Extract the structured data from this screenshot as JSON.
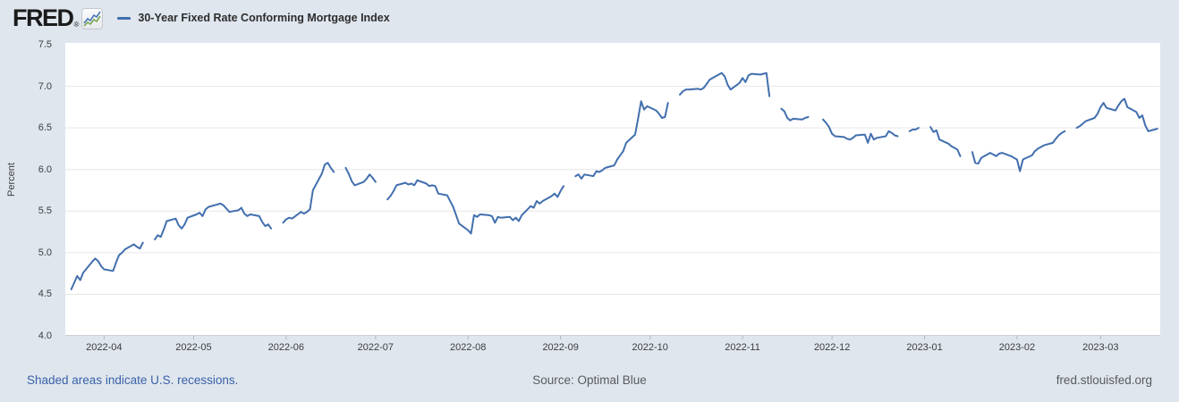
{
  "header": {
    "logo_text": "FRED",
    "logo_reg": "®",
    "series_label": "30-Year Fixed Rate Conforming Mortgage Index"
  },
  "footer": {
    "recession_note": "Shaded areas indicate U.S. recessions.",
    "source": "Source: Optimal Blue",
    "site": "fred.stlouisfed.org"
  },
  "colors": {
    "background": "#dfe6ee",
    "plot_background": "#ffffff",
    "line": "#426fae",
    "gridline": "#e6e6e6",
    "tick": "#b0b8c2",
    "axis_text": "#3d3d3d",
    "link": "#3a62a8",
    "muted_text": "#595b5d"
  },
  "chart_data": {
    "type": "line",
    "title": "30-Year Fixed Rate Conforming Mortgage Index",
    "ylabel": "Percent",
    "xlabel": "",
    "ylim": [
      4.0,
      7.5
    ],
    "x_range": [
      "2022-03-19",
      "2023-03-21"
    ],
    "grid": "horizontal",
    "legend_position": "top-left",
    "y_ticks": [
      {
        "label": "7.5",
        "value": 7.5
      },
      {
        "label": "7.0",
        "value": 7.0
      },
      {
        "label": "6.5",
        "value": 6.5
      },
      {
        "label": "6.0",
        "value": 6.0
      },
      {
        "label": "5.5",
        "value": 5.5
      },
      {
        "label": "5.0",
        "value": 5.0
      },
      {
        "label": "4.5",
        "value": 4.5
      },
      {
        "label": "4.0",
        "value": 4.0
      }
    ],
    "x_ticks": [
      {
        "label": "2022-04",
        "date": "2022-04-01"
      },
      {
        "label": "2022-05",
        "date": "2022-05-01"
      },
      {
        "label": "2022-06",
        "date": "2022-06-01"
      },
      {
        "label": "2022-07",
        "date": "2022-07-01"
      },
      {
        "label": "2022-08",
        "date": "2022-08-01"
      },
      {
        "label": "2022-09",
        "date": "2022-09-01"
      },
      {
        "label": "2022-10",
        "date": "2022-10-01"
      },
      {
        "label": "2022-11",
        "date": "2022-11-01"
      },
      {
        "label": "2022-12",
        "date": "2022-12-01"
      },
      {
        "label": "2023-01",
        "date": "2023-01-01"
      },
      {
        "label": "2023-02",
        "date": "2023-02-01"
      },
      {
        "label": "2023-03",
        "date": "2023-03-01"
      }
    ],
    "series": [
      {
        "name": "30-Year Fixed Rate Conforming Mortgage Index",
        "units": "Percent",
        "observations": [
          [
            "2022-03-21",
            4.56
          ],
          [
            "2022-03-22",
            4.64
          ],
          [
            "2022-03-23",
            4.72
          ],
          [
            "2022-03-24",
            4.67
          ],
          [
            "2022-03-25",
            4.76
          ],
          [
            "2022-03-28",
            4.89
          ],
          [
            "2022-03-29",
            4.93
          ],
          [
            "2022-03-30",
            4.9
          ],
          [
            "2022-03-31",
            4.84
          ],
          [
            "2022-04-01",
            4.8
          ],
          [
            "2022-04-04",
            4.78
          ],
          [
            "2022-04-05",
            4.88
          ],
          [
            "2022-04-06",
            4.97
          ],
          [
            "2022-04-07",
            5.0
          ],
          [
            "2022-04-08",
            5.04
          ],
          [
            "2022-04-11",
            5.1
          ],
          [
            "2022-04-12",
            5.07
          ],
          [
            "2022-04-13",
            5.05
          ],
          [
            "2022-04-14",
            5.12
          ],
          [
            "2022-04-18",
            5.16
          ],
          [
            "2022-04-19",
            5.21
          ],
          [
            "2022-04-20",
            5.19
          ],
          [
            "2022-04-21",
            5.28
          ],
          [
            "2022-04-22",
            5.38
          ],
          [
            "2022-04-25",
            5.41
          ],
          [
            "2022-04-26",
            5.33
          ],
          [
            "2022-04-27",
            5.29
          ],
          [
            "2022-04-28",
            5.34
          ],
          [
            "2022-04-29",
            5.42
          ],
          [
            "2022-05-02",
            5.46
          ],
          [
            "2022-05-03",
            5.48
          ],
          [
            "2022-05-04",
            5.44
          ],
          [
            "2022-05-05",
            5.52
          ],
          [
            "2022-05-06",
            5.55
          ],
          [
            "2022-05-09",
            5.58
          ],
          [
            "2022-05-10",
            5.59
          ],
          [
            "2022-05-11",
            5.57
          ],
          [
            "2022-05-12",
            5.53
          ],
          [
            "2022-05-13",
            5.49
          ],
          [
            "2022-05-16",
            5.51
          ],
          [
            "2022-05-17",
            5.54
          ],
          [
            "2022-05-18",
            5.47
          ],
          [
            "2022-05-19",
            5.44
          ],
          [
            "2022-05-20",
            5.46
          ],
          [
            "2022-05-23",
            5.44
          ],
          [
            "2022-05-24",
            5.37
          ],
          [
            "2022-05-25",
            5.32
          ],
          [
            "2022-05-26",
            5.34
          ],
          [
            "2022-05-27",
            5.29
          ],
          [
            "2022-05-31",
            5.36
          ],
          [
            "2022-06-01",
            5.4
          ],
          [
            "2022-06-02",
            5.42
          ],
          [
            "2022-06-03",
            5.41
          ],
          [
            "2022-06-06",
            5.49
          ],
          [
            "2022-06-07",
            5.47
          ],
          [
            "2022-06-08",
            5.49
          ],
          [
            "2022-06-09",
            5.52
          ],
          [
            "2022-06-10",
            5.75
          ],
          [
            "2022-06-13",
            5.95
          ],
          [
            "2022-06-14",
            6.06
          ],
          [
            "2022-06-15",
            6.08
          ],
          [
            "2022-06-16",
            6.02
          ],
          [
            "2022-06-17",
            5.97
          ],
          [
            "2022-06-21",
            6.02
          ],
          [
            "2022-06-22",
            5.95
          ],
          [
            "2022-06-23",
            5.86
          ],
          [
            "2022-06-24",
            5.81
          ],
          [
            "2022-06-27",
            5.85
          ],
          [
            "2022-06-28",
            5.89
          ],
          [
            "2022-06-29",
            5.94
          ],
          [
            "2022-06-30",
            5.9
          ],
          [
            "2022-07-01",
            5.85
          ],
          [
            "2022-07-05",
            5.64
          ],
          [
            "2022-07-06",
            5.68
          ],
          [
            "2022-07-07",
            5.74
          ],
          [
            "2022-07-08",
            5.81
          ],
          [
            "2022-07-11",
            5.84
          ],
          [
            "2022-07-12",
            5.82
          ],
          [
            "2022-07-13",
            5.83
          ],
          [
            "2022-07-14",
            5.81
          ],
          [
            "2022-07-15",
            5.87
          ],
          [
            "2022-07-18",
            5.83
          ],
          [
            "2022-07-19",
            5.8
          ],
          [
            "2022-07-20",
            5.81
          ],
          [
            "2022-07-21",
            5.8
          ],
          [
            "2022-07-22",
            5.71
          ],
          [
            "2022-07-25",
            5.69
          ],
          [
            "2022-07-26",
            5.62
          ],
          [
            "2022-07-27",
            5.55
          ],
          [
            "2022-07-28",
            5.45
          ],
          [
            "2022-07-29",
            5.35
          ],
          [
            "2022-08-01",
            5.27
          ],
          [
            "2022-08-02",
            5.23
          ],
          [
            "2022-08-03",
            5.45
          ],
          [
            "2022-08-04",
            5.43
          ],
          [
            "2022-08-05",
            5.46
          ],
          [
            "2022-08-08",
            5.45
          ],
          [
            "2022-08-09",
            5.44
          ],
          [
            "2022-08-10",
            5.36
          ],
          [
            "2022-08-11",
            5.43
          ],
          [
            "2022-08-12",
            5.42
          ],
          [
            "2022-08-15",
            5.43
          ],
          [
            "2022-08-16",
            5.39
          ],
          [
            "2022-08-17",
            5.42
          ],
          [
            "2022-08-18",
            5.38
          ],
          [
            "2022-08-19",
            5.45
          ],
          [
            "2022-08-22",
            5.56
          ],
          [
            "2022-08-23",
            5.54
          ],
          [
            "2022-08-24",
            5.62
          ],
          [
            "2022-08-25",
            5.59
          ],
          [
            "2022-08-26",
            5.62
          ],
          [
            "2022-08-29",
            5.68
          ],
          [
            "2022-08-30",
            5.71
          ],
          [
            "2022-08-31",
            5.67
          ],
          [
            "2022-09-01",
            5.74
          ],
          [
            "2022-09-02",
            5.8
          ],
          [
            "2022-09-06",
            5.92
          ],
          [
            "2022-09-07",
            5.94
          ],
          [
            "2022-09-08",
            5.89
          ],
          [
            "2022-09-09",
            5.94
          ],
          [
            "2022-09-12",
            5.92
          ],
          [
            "2022-09-13",
            5.98
          ],
          [
            "2022-09-14",
            5.97
          ],
          [
            "2022-09-15",
            5.99
          ],
          [
            "2022-09-16",
            6.02
          ],
          [
            "2022-09-19",
            6.05
          ],
          [
            "2022-09-20",
            6.12
          ],
          [
            "2022-09-21",
            6.17
          ],
          [
            "2022-09-22",
            6.22
          ],
          [
            "2022-09-23",
            6.32
          ],
          [
            "2022-09-26",
            6.42
          ],
          [
            "2022-09-27",
            6.61
          ],
          [
            "2022-09-28",
            6.82
          ],
          [
            "2022-09-29",
            6.72
          ],
          [
            "2022-09-30",
            6.76
          ],
          [
            "2022-10-03",
            6.71
          ],
          [
            "2022-10-04",
            6.67
          ],
          [
            "2022-10-05",
            6.62
          ],
          [
            "2022-10-06",
            6.63
          ],
          [
            "2022-10-07",
            6.8
          ],
          [
            "2022-10-11",
            6.9
          ],
          [
            "2022-10-12",
            6.94
          ],
          [
            "2022-10-13",
            6.96
          ],
          [
            "2022-10-14",
            6.96
          ],
          [
            "2022-10-17",
            6.97
          ],
          [
            "2022-10-18",
            6.96
          ],
          [
            "2022-10-19",
            6.98
          ],
          [
            "2022-10-20",
            7.03
          ],
          [
            "2022-10-21",
            7.08
          ],
          [
            "2022-10-24",
            7.14
          ],
          [
            "2022-10-25",
            7.16
          ],
          [
            "2022-10-26",
            7.12
          ],
          [
            "2022-10-27",
            7.02
          ],
          [
            "2022-10-28",
            6.96
          ],
          [
            "2022-10-31",
            7.04
          ],
          [
            "2022-11-01",
            7.1
          ],
          [
            "2022-11-02",
            7.05
          ],
          [
            "2022-11-03",
            7.13
          ],
          [
            "2022-11-04",
            7.15
          ],
          [
            "2022-11-07",
            7.14
          ],
          [
            "2022-11-08",
            7.15
          ],
          [
            "2022-11-09",
            7.16
          ],
          [
            "2022-11-10",
            6.88
          ],
          [
            "2022-11-14",
            6.73
          ],
          [
            "2022-11-15",
            6.7
          ],
          [
            "2022-11-16",
            6.62
          ],
          [
            "2022-11-17",
            6.59
          ],
          [
            "2022-11-18",
            6.61
          ],
          [
            "2022-11-21",
            6.6
          ],
          [
            "2022-11-22",
            6.62
          ],
          [
            "2022-11-23",
            6.63
          ],
          [
            "2022-11-28",
            6.6
          ],
          [
            "2022-11-29",
            6.56
          ],
          [
            "2022-11-30",
            6.51
          ],
          [
            "2022-12-01",
            6.43
          ],
          [
            "2022-12-02",
            6.4
          ],
          [
            "2022-12-05",
            6.39
          ],
          [
            "2022-12-06",
            6.37
          ],
          [
            "2022-12-07",
            6.36
          ],
          [
            "2022-12-08",
            6.38
          ],
          [
            "2022-12-09",
            6.41
          ],
          [
            "2022-12-12",
            6.42
          ],
          [
            "2022-12-13",
            6.32
          ],
          [
            "2022-12-14",
            6.43
          ],
          [
            "2022-12-15",
            6.36
          ],
          [
            "2022-12-16",
            6.38
          ],
          [
            "2022-12-19",
            6.4
          ],
          [
            "2022-12-20",
            6.46
          ],
          [
            "2022-12-21",
            6.44
          ],
          [
            "2022-12-22",
            6.41
          ],
          [
            "2022-12-23",
            6.4
          ],
          [
            "2022-12-27",
            6.46
          ],
          [
            "2022-12-28",
            6.48
          ],
          [
            "2022-12-29",
            6.48
          ],
          [
            "2022-12-30",
            6.5
          ],
          [
            "2023-01-03",
            6.51
          ],
          [
            "2023-01-04",
            6.45
          ],
          [
            "2023-01-05",
            6.47
          ],
          [
            "2023-01-06",
            6.36
          ],
          [
            "2023-01-09",
            6.31
          ],
          [
            "2023-01-10",
            6.28
          ],
          [
            "2023-01-11",
            6.26
          ],
          [
            "2023-01-12",
            6.24
          ],
          [
            "2023-01-13",
            6.16
          ],
          [
            "2023-01-17",
            6.21
          ],
          [
            "2023-01-18",
            6.08
          ],
          [
            "2023-01-19",
            6.07
          ],
          [
            "2023-01-20",
            6.14
          ],
          [
            "2023-01-23",
            6.2
          ],
          [
            "2023-01-24",
            6.18
          ],
          [
            "2023-01-25",
            6.16
          ],
          [
            "2023-01-26",
            6.19
          ],
          [
            "2023-01-27",
            6.2
          ],
          [
            "2023-01-30",
            6.16
          ],
          [
            "2023-01-31",
            6.14
          ],
          [
            "2023-02-01",
            6.12
          ],
          [
            "2023-02-02",
            5.98
          ],
          [
            "2023-02-03",
            6.12
          ],
          [
            "2023-02-06",
            6.17
          ],
          [
            "2023-02-07",
            6.22
          ],
          [
            "2023-02-08",
            6.25
          ],
          [
            "2023-02-09",
            6.27
          ],
          [
            "2023-02-10",
            6.29
          ],
          [
            "2023-02-13",
            6.32
          ],
          [
            "2023-02-14",
            6.37
          ],
          [
            "2023-02-15",
            6.41
          ],
          [
            "2023-02-16",
            6.44
          ],
          [
            "2023-02-17",
            6.46
          ],
          [
            "2023-02-21",
            6.5
          ],
          [
            "2023-02-22",
            6.52
          ],
          [
            "2023-02-23",
            6.55
          ],
          [
            "2023-02-24",
            6.58
          ],
          [
            "2023-02-27",
            6.62
          ],
          [
            "2023-02-28",
            6.67
          ],
          [
            "2023-03-01",
            6.75
          ],
          [
            "2023-03-02",
            6.8
          ],
          [
            "2023-03-03",
            6.74
          ],
          [
            "2023-03-06",
            6.71
          ],
          [
            "2023-03-07",
            6.77
          ],
          [
            "2023-03-08",
            6.82
          ],
          [
            "2023-03-09",
            6.85
          ],
          [
            "2023-03-10",
            6.75
          ],
          [
            "2023-03-13",
            6.69
          ],
          [
            "2023-03-14",
            6.62
          ],
          [
            "2023-03-15",
            6.65
          ],
          [
            "2023-03-16",
            6.53
          ],
          [
            "2023-03-17",
            6.46
          ],
          [
            "2023-03-20",
            6.49
          ]
        ]
      }
    ]
  }
}
